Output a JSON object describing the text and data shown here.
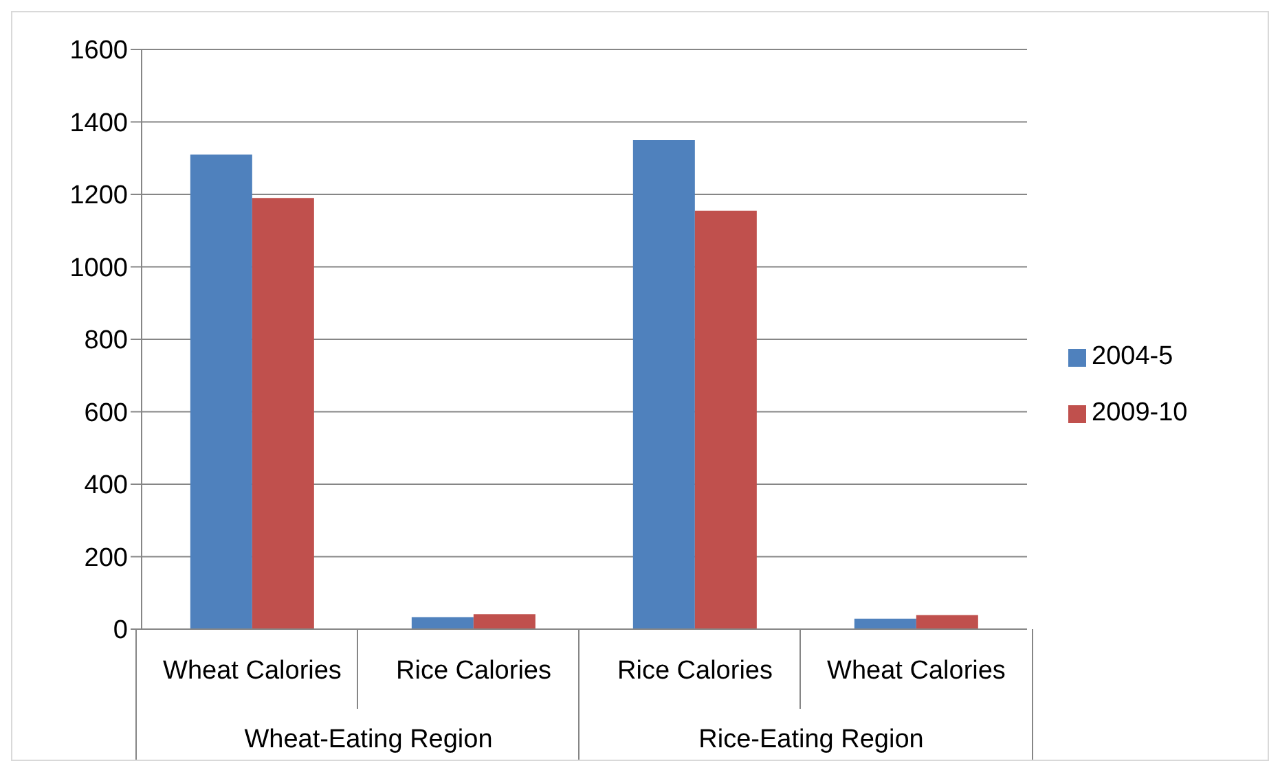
{
  "chart_data": {
    "type": "bar",
    "categories": [
      "Wheat Calories",
      "Rice Calories",
      "Rice Calories",
      "Wheat Calories"
    ],
    "annotations": [
      "Wheat-Eating Region",
      "Rice-Eating Region"
    ],
    "series": [
      {
        "name": "2004-5",
        "color": "#4f81bd",
        "values": [
          1310,
          33,
          1350,
          29
        ]
      },
      {
        "name": "2009-10",
        "color": "#c0504d",
        "values": [
          1190,
          41,
          1155,
          39
        ]
      }
    ],
    "ylim": [
      0,
      1600
    ],
    "yticks": [
      0,
      200,
      400,
      600,
      800,
      1000,
      1200,
      1400,
      1600
    ],
    "grid": "y",
    "legend": "right"
  }
}
